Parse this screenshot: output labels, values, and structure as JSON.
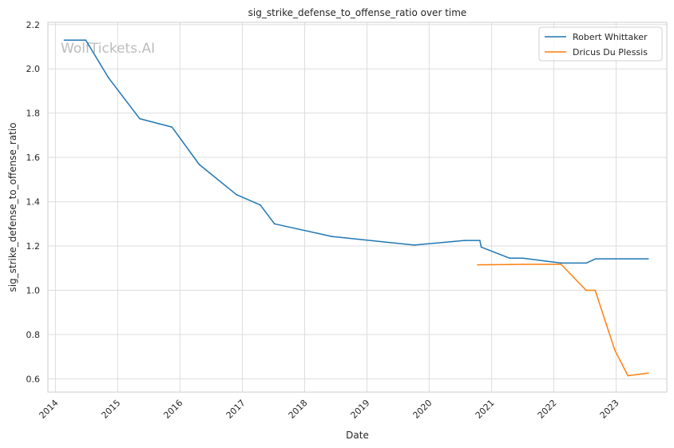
{
  "chart_data": {
    "type": "line",
    "title": "sig_strike_defense_to_offense_ratio over time",
    "xlabel": "Date",
    "ylabel": "sig_strike_defense_to_offense_ratio",
    "watermark": "WolfTickets.AI",
    "xlim": [
      "2013-11-18",
      "2023-10-25"
    ],
    "ylim": [
      0.54,
      2.21
    ],
    "x_ticks": [
      "2014",
      "2015",
      "2016",
      "2017",
      "2018",
      "2019",
      "2020",
      "2021",
      "2022",
      "2023"
    ],
    "y_ticks": [
      "0.6",
      "0.8",
      "1.0",
      "1.2",
      "1.4",
      "1.6",
      "1.8",
      "2.0",
      "2.2"
    ],
    "grid": true,
    "legend": "top-right",
    "series": [
      {
        "name": "Robert Whittaker",
        "color": "#1f77b4",
        "points": [
          [
            "2014-02-22",
            2.13
          ],
          [
            "2014-06-28",
            2.13
          ],
          [
            "2014-11-08",
            1.96
          ],
          [
            "2015-05-10",
            1.775
          ],
          [
            "2015-11-15",
            1.737
          ],
          [
            "2016-04-23",
            1.568
          ],
          [
            "2016-11-27",
            1.432
          ],
          [
            "2017-04-16",
            1.385
          ],
          [
            "2017-07-08",
            1.3
          ],
          [
            "2018-06-09",
            1.243
          ],
          [
            "2019-10-06",
            1.204
          ],
          [
            "2020-07-26",
            1.225
          ],
          [
            "2020-10-24",
            1.225
          ],
          [
            "2020-11-01",
            1.195
          ],
          [
            "2021-04-17",
            1.145
          ],
          [
            "2021-07-01",
            1.145
          ],
          [
            "2022-02-12",
            1.123
          ],
          [
            "2022-07-10",
            1.123
          ],
          [
            "2022-09-03",
            1.142
          ],
          [
            "2023-07-08",
            1.142
          ]
        ]
      },
      {
        "name": "Dricus Du Plessis",
        "color": "#ff7f0e",
        "points": [
          [
            "2020-10-11",
            1.115
          ],
          [
            "2021-07-01",
            1.117
          ],
          [
            "2022-02-12",
            1.117
          ],
          [
            "2022-07-09",
            1.0
          ],
          [
            "2022-08-31",
            1.0
          ],
          [
            "2022-12-24",
            0.73
          ],
          [
            "2023-03-11",
            0.614
          ],
          [
            "2023-07-08",
            0.626
          ]
        ]
      }
    ]
  }
}
